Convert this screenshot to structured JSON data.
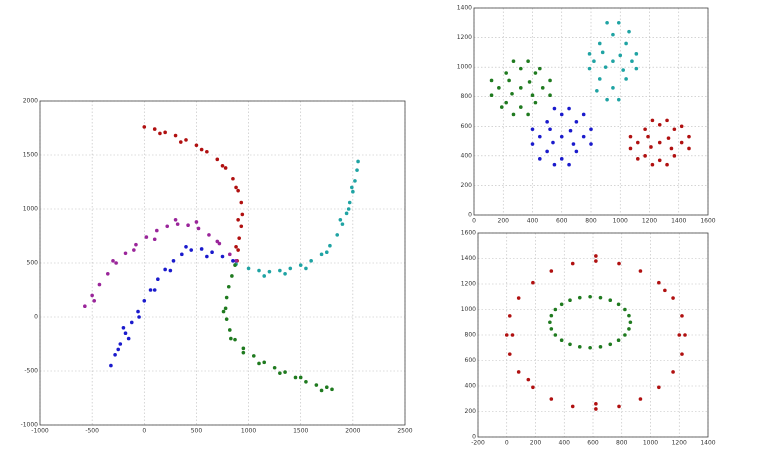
{
  "chart_data": [
    {
      "type": "scatter",
      "xlim": [
        -1000,
        2500
      ],
      "xticks": [
        -1000,
        -500,
        0,
        500,
        1000,
        1500,
        2000,
        2500
      ],
      "ylim": [
        -1000,
        2000
      ],
      "yticks": [
        -1000,
        -500,
        0,
        500,
        1000,
        1500,
        2000
      ],
      "grid": true,
      "series": [
        {
          "color": "#b01010",
          "x": [
            0,
            100,
            200,
            300,
            400,
            500,
            600,
            700,
            780,
            850,
            900,
            930,
            940,
            930,
            910,
            900,
            890,
            150,
            350,
            550,
            750,
            880,
            900,
            880
          ],
          "values": [
            1760,
            1740,
            1710,
            1680,
            1640,
            1590,
            1530,
            1460,
            1380,
            1280,
            1170,
            1060,
            950,
            840,
            730,
            620,
            520,
            1700,
            1620,
            1550,
            1400,
            1200,
            900,
            650
          ]
        },
        {
          "color": "#1fa3a3",
          "x": [
            880,
            1000,
            1100,
            1200,
            1300,
            1400,
            1500,
            1600,
            1700,
            1780,
            1850,
            1900,
            1940,
            1970,
            2000,
            2020,
            2040,
            2050,
            1150,
            1350,
            1550,
            1750,
            1880,
            1960,
            1990
          ],
          "values": [
            490,
            450,
            430,
            420,
            430,
            450,
            480,
            520,
            580,
            660,
            760,
            860,
            960,
            1060,
            1160,
            1260,
            1360,
            1440,
            380,
            400,
            450,
            600,
            900,
            1000,
            1200
          ]
        },
        {
          "color": "#1f7a1f",
          "x": [
            870,
            840,
            810,
            790,
            780,
            790,
            820,
            870,
            950,
            1050,
            1150,
            1250,
            1350,
            1450,
            1550,
            1650,
            1750,
            1800,
            760,
            830,
            950,
            1100,
            1300,
            1500,
            1700
          ],
          "values": [
            480,
            380,
            280,
            180,
            80,
            -20,
            -120,
            -210,
            -290,
            -360,
            -420,
            -470,
            -510,
            -560,
            -600,
            -630,
            -650,
            -670,
            50,
            -200,
            -330,
            -430,
            -520,
            -560,
            -680
          ]
        },
        {
          "color": "#9a259a",
          "x": [
            -570,
            -500,
            -430,
            -350,
            -270,
            -180,
            -80,
            20,
            120,
            220,
            320,
            420,
            520,
            620,
            720,
            820,
            880,
            -480,
            -300,
            -100,
            100,
            300,
            500,
            700
          ],
          "values": [
            100,
            200,
            300,
            400,
            500,
            590,
            670,
            740,
            800,
            840,
            860,
            850,
            820,
            760,
            680,
            580,
            520,
            150,
            520,
            620,
            720,
            900,
            880,
            700
          ]
        },
        {
          "color": "#1a1acc",
          "x": [
            -320,
            -280,
            -230,
            -180,
            -120,
            -60,
            0,
            60,
            130,
            200,
            280,
            360,
            450,
            550,
            650,
            750,
            850,
            -250,
            -150,
            -50,
            100,
            250,
            400,
            600,
            -200
          ],
          "values": [
            -450,
            -350,
            -250,
            -150,
            -50,
            50,
            150,
            250,
            350,
            440,
            520,
            580,
            620,
            630,
            600,
            560,
            520,
            -300,
            -200,
            0,
            250,
            430,
            650,
            560,
            -100
          ]
        }
      ]
    },
    {
      "type": "scatter",
      "xlim": [
        0,
        1600
      ],
      "xticks": [
        0,
        200,
        400,
        600,
        800,
        1000,
        1200,
        1400,
        1600
      ],
      "ylim": [
        0,
        1400
      ],
      "yticks": [
        0,
        200,
        400,
        600,
        800,
        1000,
        1200,
        1400
      ],
      "grid": true,
      "series": [
        {
          "color": "#1f7a1f",
          "x": [
            320,
            470,
            170,
            320,
            320,
            420,
            220,
            420,
            220,
            520,
            120,
            520,
            120,
            370,
            270,
            370,
            270,
            380,
            260,
            240,
            400,
            450,
            190
          ],
          "values": [
            860,
            860,
            860,
            990,
            730,
            960,
            960,
            760,
            760,
            910,
            910,
            810,
            810,
            1040,
            1040,
            680,
            680,
            900,
            820,
            910,
            810,
            990,
            730
          ]
        },
        {
          "color": "#1fa3a3",
          "x": [
            950,
            1080,
            820,
            950,
            950,
            1040,
            860,
            1040,
            860,
            1110,
            790,
            1110,
            790,
            990,
            910,
            990,
            910,
            1000,
            900,
            880,
            1020,
            1060,
            840
          ],
          "values": [
            1040,
            1040,
            1040,
            1220,
            860,
            1160,
            1160,
            920,
            920,
            1090,
            1090,
            990,
            990,
            1300,
            1300,
            780,
            780,
            1080,
            1000,
            1100,
            980,
            1240,
            840
          ]
        },
        {
          "color": "#1a1acc",
          "x": [
            600,
            750,
            450,
            600,
            600,
            700,
            500,
            700,
            500,
            800,
            400,
            800,
            400,
            650,
            550,
            650,
            550,
            660,
            540,
            520,
            680,
            750,
            450
          ],
          "values": [
            530,
            530,
            530,
            680,
            380,
            630,
            630,
            430,
            430,
            580,
            580,
            480,
            480,
            720,
            720,
            340,
            340,
            570,
            490,
            580,
            480,
            680,
            380
          ]
        },
        {
          "color": "#b01010",
          "x": [
            1270,
            1420,
            1120,
            1270,
            1270,
            1370,
            1170,
            1370,
            1170,
            1470,
            1070,
            1470,
            1070,
            1320,
            1220,
            1320,
            1220,
            1330,
            1210,
            1190,
            1350,
            1420,
            1120
          ],
          "values": [
            490,
            490,
            490,
            610,
            370,
            580,
            580,
            400,
            400,
            530,
            530,
            450,
            450,
            640,
            640,
            340,
            340,
            520,
            460,
            530,
            450,
            600,
            380
          ]
        }
      ]
    },
    {
      "type": "scatter",
      "xlim": [
        -200,
        1400
      ],
      "xticks": [
        -200,
        0,
        200,
        400,
        600,
        800,
        1000,
        1200,
        1400
      ],
      "ylim": [
        0,
        1600
      ],
      "yticks": [
        0,
        200,
        400,
        600,
        800,
        1000,
        1200,
        1400,
        1600
      ],
      "grid": true,
      "series": [
        {
          "color": "#b01010",
          "x": [
            1240,
            1219,
            1157,
            1058,
            930,
            781,
            620,
            459,
            310,
            182,
            83,
            21,
            0,
            21,
            83,
            182,
            310,
            459,
            620,
            781,
            930,
            1058,
            1157,
            1219,
            1200,
            40,
            620,
            620,
            1100,
            150
          ],
          "values": [
            800,
            950,
            1090,
            1210,
            1302,
            1360,
            1380,
            1360,
            1302,
            1210,
            1090,
            950,
            800,
            650,
            510,
            390,
            298,
            240,
            220,
            240,
            298,
            390,
            510,
            650,
            800,
            800,
            1420,
            260,
            1150,
            450
          ]
        },
        {
          "color": "#1f7a1f",
          "x": [
            860,
            822,
            720,
            580,
            440,
            338,
            300,
            338,
            440,
            580,
            720,
            822,
            850,
            778,
            652,
            508,
            382,
            310,
            310,
            382,
            508,
            652,
            778,
            850
          ],
          "values": [
            900,
            1000,
            1073,
            1100,
            1073,
            1000,
            900,
            800,
            727,
            700,
            727,
            800,
            952,
            1041,
            1093,
            1093,
            1041,
            952,
            848,
            759,
            707,
            707,
            759,
            848
          ]
        }
      ]
    }
  ]
}
